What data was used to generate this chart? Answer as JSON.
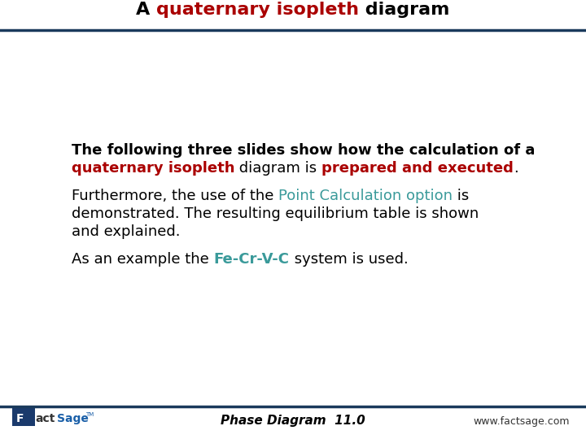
{
  "title_parts": [
    {
      "text": "A ",
      "color": "#000000",
      "bold": true
    },
    {
      "text": "quaternary isopleth",
      "color": "#AA0000",
      "bold": true
    },
    {
      "text": " diagram",
      "color": "#000000",
      "bold": true
    }
  ],
  "line_color": "#1a3a5c",
  "background_color": "#ffffff",
  "footer_text": "Phase Diagram  11.0",
  "footer_url": "www.factsage.com",
  "footer_fontsize": 11,
  "title_fontsize": 16,
  "body_fontsize": 13,
  "body_bold": false,
  "para1_line1": [
    {
      "text": "The following three slides show how the calculation of a",
      "color": "#000000",
      "bold": true
    }
  ],
  "para1_line2": [
    {
      "text": "quaternary isopleth",
      "color": "#AA0000",
      "bold": true
    },
    {
      "text": " diagram is ",
      "color": "#000000",
      "bold": false
    },
    {
      "text": "prepared and executed",
      "color": "#AA0000",
      "bold": true
    },
    {
      "text": ".",
      "color": "#000000",
      "bold": false
    }
  ],
  "para2_line1": [
    {
      "text": "Furthermore, the use of the ",
      "color": "#000000",
      "bold": false
    },
    {
      "text": "Point Calculation option",
      "color": "#3a9a9a",
      "bold": false
    },
    {
      "text": " is",
      "color": "#000000",
      "bold": false
    }
  ],
  "para2_line2": [
    {
      "text": "demonstrated. The resulting equilibrium table is shown",
      "color": "#000000",
      "bold": false
    }
  ],
  "para2_line3": [
    {
      "text": "and explained.",
      "color": "#000000",
      "bold": false
    }
  ],
  "para3_line1": [
    {
      "text": "As an example the ",
      "color": "#000000",
      "bold": false
    },
    {
      "text": "Fe-Cr-V-C",
      "color": "#3a9a9a",
      "bold": true
    },
    {
      "text": " system is used.",
      "color": "#000000",
      "bold": false
    }
  ]
}
